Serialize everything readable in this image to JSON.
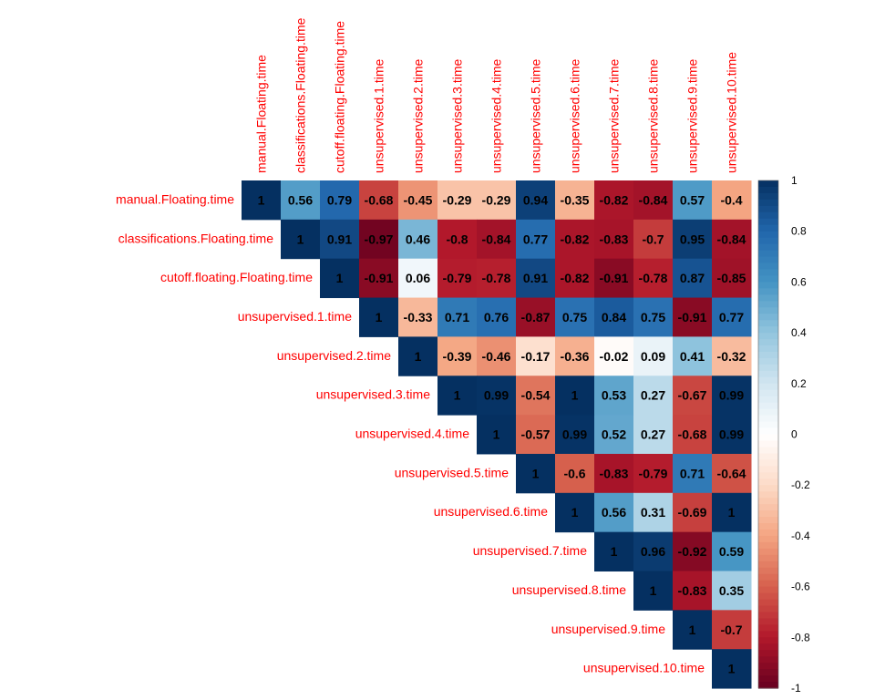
{
  "chart_data": {
    "type": "heatmap",
    "subtype": "correlation-matrix-upper",
    "variables": [
      "manual.Floating.time",
      "classifications.Floating.time",
      "cutoff.floating.Floating.time",
      "unsupervised.1.time",
      "unsupervised.2.time",
      "unsupervised.3.time",
      "unsupervised.4.time",
      "unsupervised.5.time",
      "unsupervised.6.time",
      "unsupervised.7.time",
      "unsupervised.8.time",
      "unsupervised.9.time",
      "unsupervised.10.time"
    ],
    "matrix": [
      [
        "1",
        "0.56",
        "0.79",
        "-0.68",
        "-0.45",
        "-0.29",
        "-0.29",
        "0.94",
        "-0.35",
        "-0.82",
        "-0.84",
        "0.57",
        "-0.4"
      ],
      [
        "1",
        "0.91",
        "-0.97",
        "0.46",
        "-0.8",
        "-0.84",
        "0.77",
        "-0.82",
        "-0.83",
        "-0.7",
        "0.95",
        "-0.84"
      ],
      [
        "1",
        "-0.91",
        "0.06",
        "-0.79",
        "-0.78",
        "0.91",
        "-0.82",
        "-0.91",
        "-0.78",
        "0.87",
        "-0.85"
      ],
      [
        "1",
        "-0.33",
        "0.71",
        "0.76",
        "-0.87",
        "0.75",
        "0.84",
        "0.75",
        "-0.91",
        "0.77"
      ],
      [
        "1",
        "-0.39",
        "-0.46",
        "-0.17",
        "-0.36",
        "-0.02",
        "0.09",
        "0.41",
        "-0.32"
      ],
      [
        "1",
        "0.99",
        "-0.54",
        "1",
        "0.53",
        "0.27",
        "-0.67",
        "0.99"
      ],
      [
        "1",
        "-0.57",
        "0.99",
        "0.52",
        "0.27",
        "-0.68",
        "0.99"
      ],
      [
        "1",
        "-0.6",
        "-0.83",
        "-0.79",
        "0.71",
        "-0.64"
      ],
      [
        "1",
        "0.56",
        "0.31",
        "-0.69",
        "1"
      ],
      [
        "1",
        "0.96",
        "-0.92",
        "0.59"
      ],
      [
        "1",
        "-0.83",
        "0.35"
      ],
      [
        "1",
        "-0.7"
      ],
      [
        "1"
      ]
    ],
    "colorbar": {
      "ticks": [
        "1",
        "0.8",
        "0.6",
        "0.4",
        "0.2",
        "0",
        "-0.2",
        "-0.4",
        "-0.6",
        "-0.8",
        "-1"
      ],
      "range": [
        -1,
        1
      ],
      "colors": [
        "#67001f",
        "#b2182b",
        "#d6604d",
        "#f4a582",
        "#fddbc7",
        "#ffffff",
        "#d1e5f0",
        "#92c5de",
        "#4393c3",
        "#2166ac",
        "#053061"
      ]
    },
    "label_color": "#ff0000",
    "title": "",
    "xlabel": "",
    "ylabel": ""
  }
}
